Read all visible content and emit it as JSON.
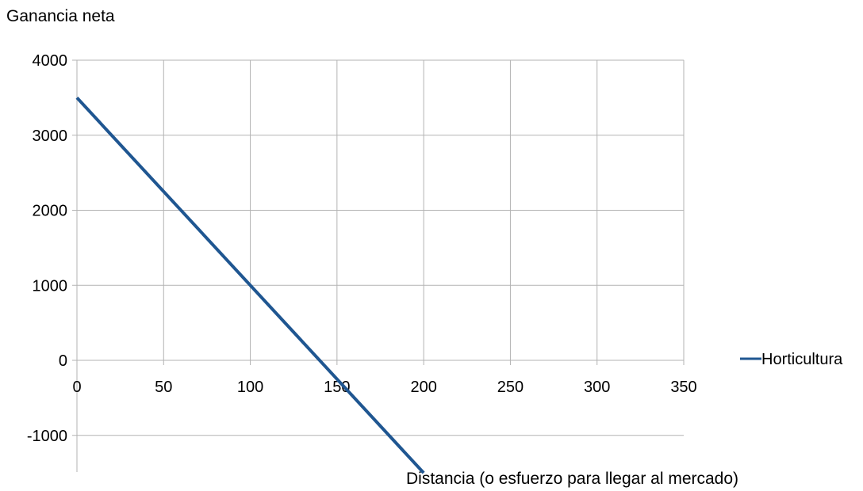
{
  "chart_data": {
    "type": "line",
    "ylabel": "Ganancia neta",
    "xlabel": "Distancia (o esfuerzo para llegar al mercado)",
    "xlim": [
      0,
      350
    ],
    "ylim": [
      -1500,
      4000
    ],
    "x_ticks": [
      "0",
      "50",
      "100",
      "150",
      "200",
      "250",
      "300",
      "350"
    ],
    "y_ticks": [
      "4000",
      "3000",
      "2000",
      "1000",
      "0",
      "-1000"
    ],
    "x_tick_values": [
      0,
      50,
      100,
      150,
      200,
      250,
      300,
      350
    ],
    "y_tick_values": [
      4000,
      3000,
      2000,
      1000,
      0,
      -1000
    ],
    "grid": true,
    "legend_position": "right",
    "series": [
      {
        "name": "Horticultura",
        "color": "#1f5691",
        "x": [
          0,
          200
        ],
        "y": [
          3500,
          -1500
        ]
      }
    ]
  }
}
